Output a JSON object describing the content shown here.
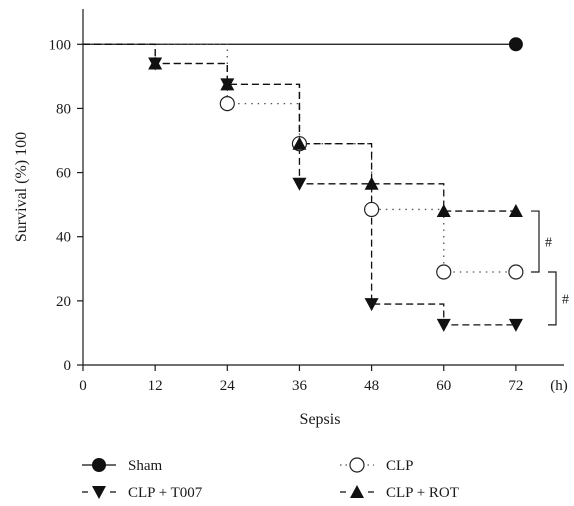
{
  "chart_data": {
    "type": "line",
    "subtype": "kaplan-meier-step",
    "x_axis": {
      "label": "Sepsis",
      "unit": "(h)",
      "ticks": [
        0,
        12,
        24,
        36,
        48,
        60,
        72
      ],
      "range": [
        0,
        80
      ]
    },
    "y_axis": {
      "label": "Survival (%) 100",
      "ticks": [
        0,
        20,
        40,
        60,
        80,
        100
      ],
      "range": [
        0,
        111
      ]
    },
    "grid": false,
    "legend_position": "bottom",
    "series": [
      {
        "name": "Sham",
        "color": "#111111",
        "line_style": "solid",
        "marker": "filled-circle",
        "points": [
          {
            "x": 0,
            "y": 100
          },
          {
            "x": 72,
            "y": 100
          }
        ],
        "markers_at": [
          72
        ]
      },
      {
        "name": "CLP",
        "color": "#555555",
        "line_style": "dotted",
        "marker": "open-circle",
        "points": [
          {
            "x": 0,
            "y": 100
          },
          {
            "x": 24,
            "y": 81.5
          },
          {
            "x": 36,
            "y": 69
          },
          {
            "x": 48,
            "y": 48.5
          },
          {
            "x": 60,
            "y": 29
          },
          {
            "x": 72,
            "y": 29
          }
        ],
        "markers_at": [
          24,
          36,
          48,
          60,
          72
        ]
      },
      {
        "name": "CLP + T007",
        "color": "#111111",
        "line_style": "dashed",
        "marker": "filled-triangle-down",
        "points": [
          {
            "x": 0,
            "y": 100
          },
          {
            "x": 12,
            "y": 94
          },
          {
            "x": 24,
            "y": 87.5
          },
          {
            "x": 36,
            "y": 56.5
          },
          {
            "x": 48,
            "y": 19
          },
          {
            "x": 60,
            "y": 12.5
          },
          {
            "x": 72,
            "y": 12.5
          }
        ],
        "markers_at": [
          12,
          24,
          36,
          48,
          60,
          72
        ]
      },
      {
        "name": "CLP + ROT",
        "color": "#111111",
        "line_style": "dashed",
        "marker": "filled-triangle-up",
        "points": [
          {
            "x": 0,
            "y": 100
          },
          {
            "x": 12,
            "y": 94
          },
          {
            "x": 24,
            "y": 87.5
          },
          {
            "x": 36,
            "y": 69
          },
          {
            "x": 48,
            "y": 56.5
          },
          {
            "x": 60,
            "y": 48
          },
          {
            "x": 72,
            "y": 48
          }
        ],
        "markers_at": [
          12,
          24,
          36,
          48,
          60,
          72
        ]
      }
    ],
    "annotations": [
      {
        "label": "#",
        "compares": [
          "CLP + ROT",
          "CLP"
        ],
        "y_range": [
          29,
          48
        ]
      },
      {
        "label": "#",
        "compares": [
          "CLP",
          "CLP + T007"
        ],
        "y_range": [
          12.5,
          29
        ]
      }
    ]
  }
}
